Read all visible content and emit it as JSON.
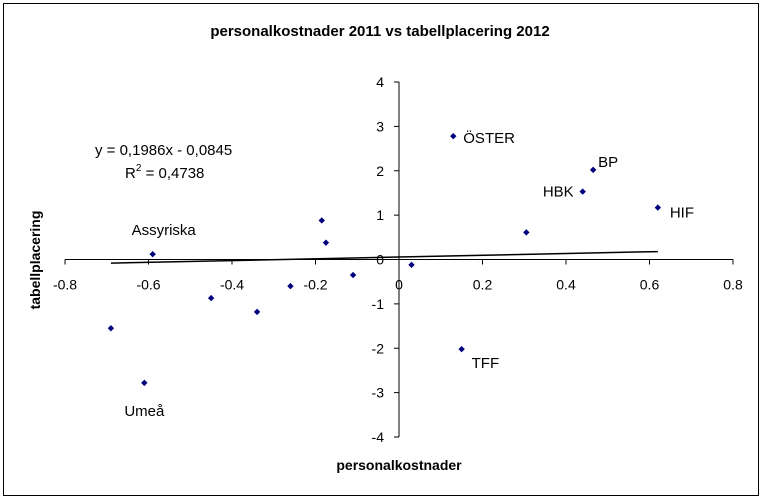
{
  "chart_data": {
    "type": "scatter",
    "title": "personalkostnader 2011 vs tabellplacering 2012",
    "xlabel": "personalkostnader",
    "ylabel": "tabellplacering",
    "xlim": [
      -0.8,
      0.8
    ],
    "ylim": [
      -4,
      4
    ],
    "x_ticks": [
      -0.8,
      -0.6,
      -0.4,
      -0.2,
      0,
      0.2,
      0.4,
      0.6,
      0.8
    ],
    "y_ticks": [
      -4,
      -3,
      -2,
      -1,
      0,
      1,
      2,
      3,
      4
    ],
    "x_tick_labels": [
      "-0.8",
      "-0.6",
      "-0.4",
      "-0.2",
      "0",
      "0.2",
      "0.4",
      "0.6",
      "0.8"
    ],
    "y_tick_labels": [
      "-4",
      "-3",
      "-2",
      "-1",
      "0",
      "1",
      "2",
      "3",
      "4"
    ],
    "grid": false,
    "marker_color": "#00007f",
    "points": [
      {
        "x": 0.13,
        "y": 2.78,
        "label": "ÖSTER"
      },
      {
        "x": 0.465,
        "y": 2.02,
        "label": "BP"
      },
      {
        "x": 0.44,
        "y": 1.53,
        "label": "HBK"
      },
      {
        "x": 0.62,
        "y": 1.17,
        "label": "HIF"
      },
      {
        "x": -0.59,
        "y": 0.12,
        "label": "Assyriska"
      },
      {
        "x": 0.15,
        "y": -2.02,
        "label": "TFF"
      },
      {
        "x": -0.61,
        "y": -2.78,
        "label": "Umeå"
      },
      {
        "x": -0.185,
        "y": 0.88,
        "label": ""
      },
      {
        "x": -0.175,
        "y": 0.38,
        "label": ""
      },
      {
        "x": 0.305,
        "y": 0.61,
        "label": ""
      },
      {
        "x": -0.11,
        "y": -0.35,
        "label": ""
      },
      {
        "x": 0.03,
        "y": -0.12,
        "label": ""
      },
      {
        "x": -0.45,
        "y": -0.87,
        "label": ""
      },
      {
        "x": -0.34,
        "y": -1.18,
        "label": ""
      },
      {
        "x": -0.26,
        "y": -0.6,
        "label": ""
      },
      {
        "x": -0.69,
        "y": -1.55,
        "label": ""
      }
    ],
    "trendline": {
      "slope": 0.1986,
      "intercept": -0.0845,
      "equation": "y = 0,1986x - 0,0845",
      "r2_prefix": "R",
      "r2_exp": "2",
      "r2_value": " = 0,4738"
    }
  }
}
